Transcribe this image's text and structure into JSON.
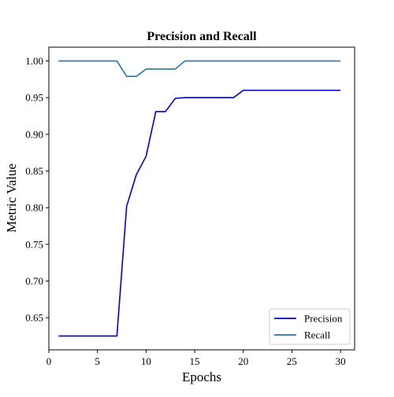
{
  "chart_data": {
    "type": "line",
    "title": "Precision and Recall",
    "xlabel": "Epochs",
    "ylabel": "Metric Value",
    "xlim": [
      0,
      31.45
    ],
    "ylim": [
      0.6062,
      1.0188
    ],
    "xticks": [
      0,
      5,
      10,
      15,
      20,
      25,
      30
    ],
    "yticks": [
      0.65,
      0.7,
      0.75,
      0.8,
      0.85,
      0.9,
      0.95,
      1.0
    ],
    "ytick_labels": [
      "0.65",
      "0.70",
      "0.75",
      "0.80",
      "0.85",
      "0.90",
      "0.95",
      "1.00"
    ],
    "grid": false,
    "legend_position": "lower-right",
    "x": [
      1,
      2,
      3,
      4,
      5,
      6,
      7,
      8,
      9,
      10,
      11,
      12,
      13,
      14,
      15,
      16,
      17,
      18,
      19,
      20,
      21,
      22,
      23,
      24,
      25,
      26,
      27,
      28,
      29,
      30
    ],
    "series": [
      {
        "name": "Precision",
        "color": "#0000cc",
        "values": [
          0.625,
          0.625,
          0.625,
          0.625,
          0.625,
          0.625,
          0.625,
          0.802,
          0.845,
          0.87,
          0.931,
          0.931,
          0.949,
          0.95,
          0.95,
          0.95,
          0.95,
          0.95,
          0.95,
          0.96,
          0.96,
          0.96,
          0.96,
          0.96,
          0.96,
          0.96,
          0.96,
          0.96,
          0.96,
          0.96
        ]
      },
      {
        "name": "Recall",
        "color": "#1f77b4",
        "values": [
          1.0,
          1.0,
          1.0,
          1.0,
          1.0,
          1.0,
          1.0,
          0.979,
          0.979,
          0.989,
          0.989,
          0.989,
          0.989,
          1.0,
          1.0,
          1.0,
          1.0,
          1.0,
          1.0,
          1.0,
          1.0,
          1.0,
          1.0,
          1.0,
          1.0,
          1.0,
          1.0,
          1.0,
          1.0,
          1.0
        ]
      }
    ]
  }
}
